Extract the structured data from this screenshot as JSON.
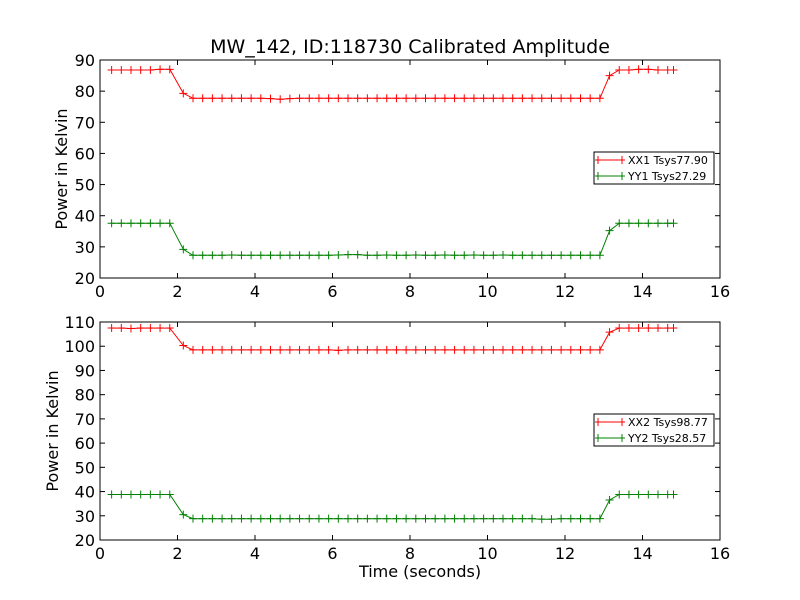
{
  "title": "MW_142, ID:118730 Calibrated Amplitude",
  "colors": {
    "red": "#ff0000",
    "green": "#008000"
  },
  "chart_data": [
    {
      "type": "line",
      "title": "MW_142, ID:118730 Calibrated Amplitude",
      "xlabel": "",
      "ylabel": "Power in Kelvin",
      "xlim": [
        0,
        16
      ],
      "ylim": [
        20,
        90
      ],
      "xticks": [
        0,
        2,
        4,
        6,
        8,
        10,
        12,
        14,
        16
      ],
      "yticks": [
        20,
        30,
        40,
        50,
        60,
        70,
        80,
        90
      ],
      "grid": false,
      "legend": "center-right",
      "x": [
        0.3,
        0.55,
        0.8,
        1.05,
        1.3,
        1.55,
        1.8,
        2.15,
        2.4,
        2.65,
        2.9,
        3.15,
        3.4,
        3.65,
        3.9,
        4.15,
        4.4,
        4.65,
        4.9,
        5.15,
        5.4,
        5.65,
        5.9,
        6.15,
        6.4,
        6.65,
        6.9,
        7.15,
        7.4,
        7.65,
        7.9,
        8.15,
        8.4,
        8.65,
        8.9,
        9.15,
        9.4,
        9.65,
        9.9,
        10.15,
        10.4,
        10.65,
        10.9,
        11.15,
        11.4,
        11.65,
        11.9,
        12.15,
        12.4,
        12.65,
        12.9,
        13.15,
        13.4,
        13.65,
        13.9,
        14.15,
        14.4,
        14.65,
        14.8
      ],
      "series": [
        {
          "name": "XX1 Tsys77.90",
          "color": "#ff0000",
          "values": [
            86.8,
            86.8,
            86.8,
            86.8,
            86.8,
            87.0,
            87.0,
            79.3,
            77.7,
            77.7,
            77.7,
            77.7,
            77.7,
            77.7,
            77.7,
            77.7,
            77.6,
            77.4,
            77.6,
            77.7,
            77.7,
            77.7,
            77.7,
            77.7,
            77.7,
            77.7,
            77.7,
            77.7,
            77.7,
            77.7,
            77.7,
            77.7,
            77.7,
            77.7,
            77.7,
            77.7,
            77.7,
            77.7,
            77.7,
            77.7,
            77.7,
            77.7,
            77.7,
            77.7,
            77.7,
            77.7,
            77.7,
            77.7,
            77.7,
            77.7,
            77.7,
            85.0,
            86.8,
            86.8,
            87.0,
            87.0,
            86.8,
            86.8,
            86.8
          ]
        },
        {
          "name": "YY1 Tsys27.29",
          "color": "#008000",
          "values": [
            37.6,
            37.6,
            37.6,
            37.6,
            37.6,
            37.6,
            37.6,
            29.2,
            27.3,
            27.3,
            27.3,
            27.3,
            27.4,
            27.3,
            27.3,
            27.3,
            27.3,
            27.3,
            27.3,
            27.3,
            27.3,
            27.3,
            27.3,
            27.4,
            27.5,
            27.5,
            27.3,
            27.3,
            27.4,
            27.3,
            27.3,
            27.4,
            27.3,
            27.3,
            27.4,
            27.3,
            27.3,
            27.4,
            27.3,
            27.3,
            27.4,
            27.3,
            27.3,
            27.3,
            27.3,
            27.3,
            27.3,
            27.3,
            27.3,
            27.3,
            27.3,
            35.2,
            37.6,
            37.6,
            37.6,
            37.6,
            37.6,
            37.6,
            37.6
          ]
        }
      ]
    },
    {
      "type": "line",
      "title": "",
      "xlabel": "Time (seconds)",
      "ylabel": "Power in Kelvin",
      "xlim": [
        0,
        16
      ],
      "ylim": [
        20,
        110
      ],
      "xticks": [
        0,
        2,
        4,
        6,
        8,
        10,
        12,
        14,
        16
      ],
      "yticks": [
        20,
        30,
        40,
        50,
        60,
        70,
        80,
        90,
        100,
        110
      ],
      "grid": false,
      "legend": "center-right",
      "x": [
        0.3,
        0.55,
        0.8,
        1.05,
        1.3,
        1.55,
        1.8,
        2.15,
        2.4,
        2.65,
        2.9,
        3.15,
        3.4,
        3.65,
        3.9,
        4.15,
        4.4,
        4.65,
        4.9,
        5.15,
        5.4,
        5.65,
        5.9,
        6.15,
        6.4,
        6.65,
        6.9,
        7.15,
        7.4,
        7.65,
        7.9,
        8.15,
        8.4,
        8.65,
        8.9,
        9.15,
        9.4,
        9.65,
        9.9,
        10.15,
        10.4,
        10.65,
        10.9,
        11.15,
        11.4,
        11.65,
        11.9,
        12.15,
        12.4,
        12.65,
        12.9,
        13.15,
        13.4,
        13.65,
        13.9,
        14.15,
        14.4,
        14.65,
        14.8
      ],
      "series": [
        {
          "name": "XX2 Tsys98.77",
          "color": "#ff0000",
          "values": [
            107.5,
            107.5,
            107.3,
            107.5,
            107.5,
            107.5,
            107.5,
            100.3,
            98.5,
            98.5,
            98.5,
            98.5,
            98.5,
            98.5,
            98.5,
            98.5,
            98.5,
            98.5,
            98.5,
            98.5,
            98.5,
            98.5,
            98.5,
            98.3,
            98.5,
            98.5,
            98.5,
            98.5,
            98.5,
            98.5,
            98.5,
            98.5,
            98.5,
            98.5,
            98.5,
            98.5,
            98.5,
            98.5,
            98.5,
            98.5,
            98.5,
            98.5,
            98.5,
            98.5,
            98.5,
            98.5,
            98.5,
            98.5,
            98.5,
            98.5,
            98.5,
            105.8,
            107.5,
            107.5,
            107.5,
            107.5,
            107.5,
            107.5,
            107.5
          ]
        },
        {
          "name": "YY2 Tsys28.57",
          "color": "#008000",
          "values": [
            38.8,
            38.8,
            38.8,
            38.8,
            38.8,
            38.8,
            38.8,
            30.5,
            28.8,
            28.8,
            28.8,
            28.8,
            28.8,
            28.8,
            28.8,
            28.8,
            28.8,
            28.8,
            28.8,
            28.8,
            28.8,
            28.8,
            28.8,
            28.8,
            28.8,
            28.8,
            28.8,
            28.8,
            28.8,
            28.8,
            28.8,
            28.8,
            28.8,
            28.8,
            28.8,
            28.8,
            28.8,
            28.8,
            28.8,
            28.8,
            28.8,
            28.8,
            28.8,
            28.8,
            28.6,
            28.6,
            28.8,
            28.8,
            28.8,
            28.8,
            28.8,
            36.5,
            38.8,
            38.8,
            38.8,
            38.8,
            38.8,
            38.8,
            38.8
          ]
        }
      ]
    }
  ]
}
